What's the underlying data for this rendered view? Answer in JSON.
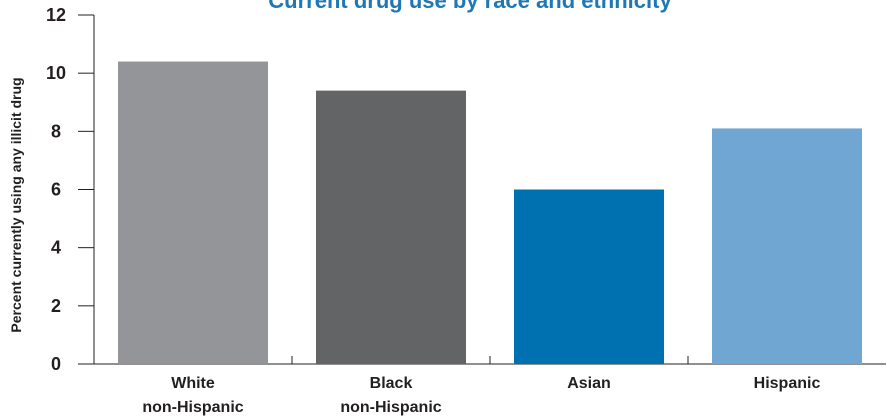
{
  "chart_data": {
    "type": "bar",
    "title": "...Current drug use by race and ethnicity...",
    "ylabel": "Percent currently using any illicit drug",
    "xlabel": "",
    "ylim": [
      0,
      12
    ],
    "yticks": [
      0,
      2,
      4,
      6,
      8,
      10,
      12
    ],
    "grid": false,
    "categories": [
      [
        "White",
        "non-Hispanic"
      ],
      [
        "Black",
        "non-Hispanic"
      ],
      [
        "Asian"
      ],
      [
        "Hispanic"
      ]
    ],
    "values": [
      10.4,
      9.4,
      6.0,
      8.1
    ],
    "colors": [
      "#939598",
      "#636466",
      "#0071b0",
      "#6fa7d2"
    ]
  },
  "colors": {
    "axis": "#231f20",
    "title": "#0071b0"
  }
}
